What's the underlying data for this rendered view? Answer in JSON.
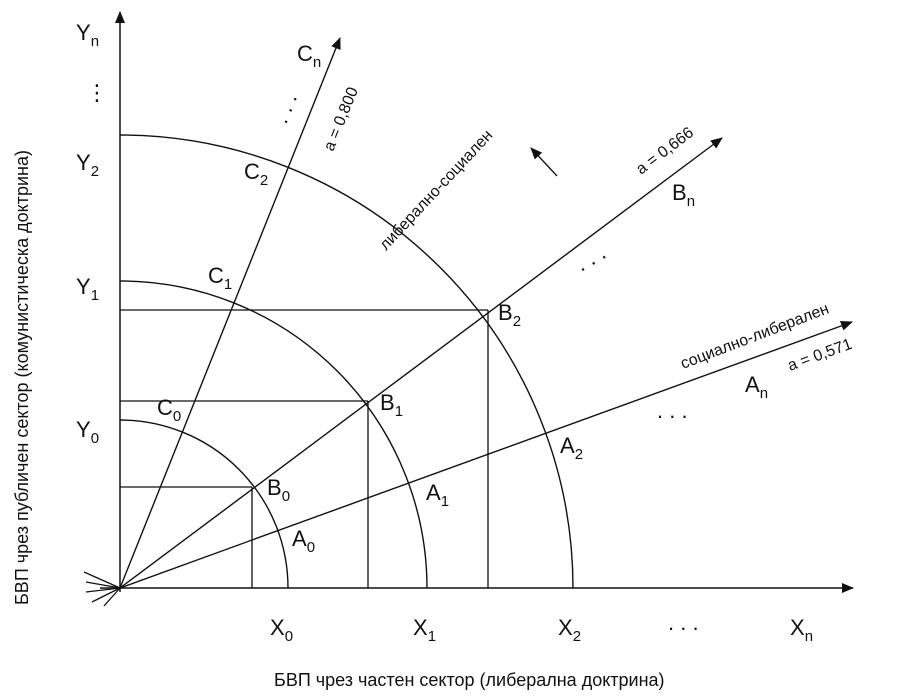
{
  "y_axis_label": "БВП чрез публичен сектор (комунистическа доктрина)",
  "x_axis_label": "БВП чрез частен сектор (либерална доктрина)",
  "x_ticks": [
    {
      "base": "X",
      "sub": "0"
    },
    {
      "base": "X",
      "sub": "1"
    },
    {
      "base": "X",
      "sub": "2"
    },
    {
      "base": "X",
      "sub": "n"
    }
  ],
  "y_ticks": [
    {
      "base": "Y",
      "sub": "0"
    },
    {
      "base": "Y",
      "sub": "1"
    },
    {
      "base": "Y",
      "sub": "2"
    },
    {
      "base": "Y",
      "sub": "n"
    }
  ],
  "rays": [
    {
      "id": "C",
      "a_label": "a = 0,800",
      "end": {
        "base": "C",
        "sub": "n"
      },
      "points": [
        {
          "base": "C",
          "sub": "0"
        },
        {
          "base": "C",
          "sub": "1"
        },
        {
          "base": "C",
          "sub": "2"
        }
      ]
    },
    {
      "id": "B",
      "a_label": "a = 0,666",
      "end": {
        "base": "B",
        "sub": "n"
      },
      "points": [
        {
          "base": "B",
          "sub": "0"
        },
        {
          "base": "B",
          "sub": "1"
        },
        {
          "base": "B",
          "sub": "2"
        }
      ]
    },
    {
      "id": "A",
      "a_label": "a = 0,571",
      "end": {
        "base": "A",
        "sub": "n"
      },
      "points": [
        {
          "base": "A",
          "sub": "0"
        },
        {
          "base": "A",
          "sub": "1"
        },
        {
          "base": "A",
          "sub": "2"
        }
      ]
    }
  ],
  "region_labels": {
    "upper": "либерално-социален",
    "lower": "социално-либерален"
  },
  "ellipsis": ". . .",
  "ellipsis_vertical": "⋮"
}
